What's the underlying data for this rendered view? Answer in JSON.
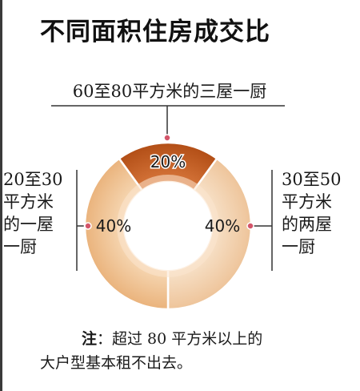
{
  "title": "不同面积住房成交比",
  "chart_data": {
    "type": "pie",
    "categories": [
      "60至80平方米的三屋一厨",
      "30至50平方米的两屋一厨",
      "20至30平方米的一屋一厨"
    ],
    "values": [
      20,
      40,
      40
    ],
    "data_labels": [
      "20%",
      "40%",
      "40%"
    ],
    "colors": [
      "#c15a22",
      "#f0cba4",
      "#f0c08c"
    ],
    "title": "不同面积住房成交比"
  },
  "callouts": {
    "top": "60至80平方米的三屋一厨",
    "left": [
      "20至30",
      "平方米",
      "的一屋",
      "一厨"
    ],
    "right": [
      "30至50",
      "平方米",
      "的两屋",
      "一厨"
    ]
  },
  "note": {
    "label": "注",
    "line1": "：超过 80 平方米以上的",
    "line2": "大户型基本租不出去。"
  }
}
